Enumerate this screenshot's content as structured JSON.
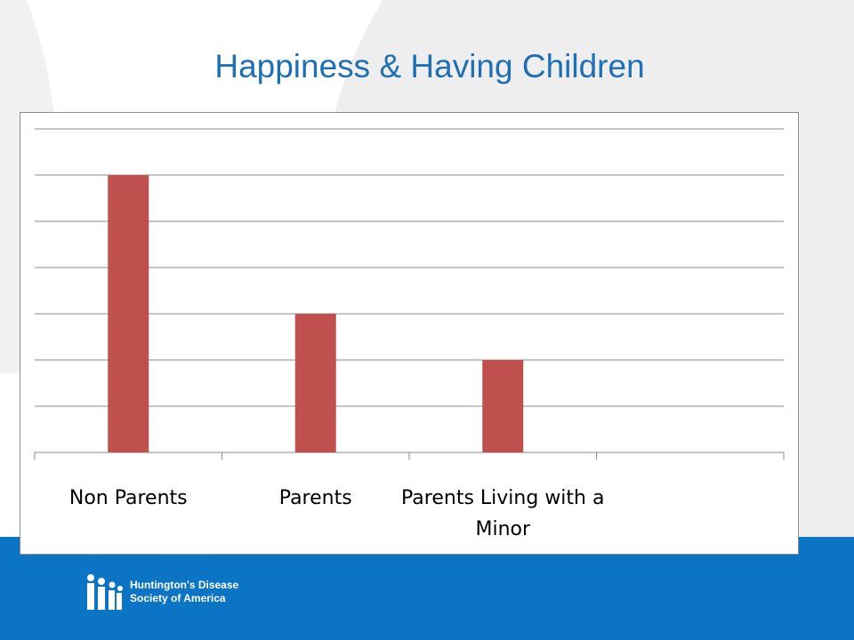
{
  "slide": {
    "title": "Happiness & Having Children"
  },
  "colors": {
    "title": "#1f6fb5",
    "bar": "#c0504d",
    "footer": "#0b74c4",
    "swoosh": "#e6e6e6"
  },
  "logo": {
    "icon": "hdsa-figures-icon",
    "line1": "Huntington's Disease",
    "line2": "Society of America"
  },
  "chart_data": {
    "type": "bar",
    "title": "",
    "xlabel": "",
    "ylabel": "",
    "categories": [
      "Non Parents",
      "Parents",
      "Parents Living with a Minor",
      ""
    ],
    "category_lines": [
      [
        "Non Parents"
      ],
      [
        "Parents"
      ],
      [
        "Parents Living with a",
        "Minor"
      ],
      []
    ],
    "values": [
      6,
      3,
      2,
      null
    ],
    "ylim": [
      0,
      7
    ],
    "grid": true,
    "legend": "none"
  }
}
